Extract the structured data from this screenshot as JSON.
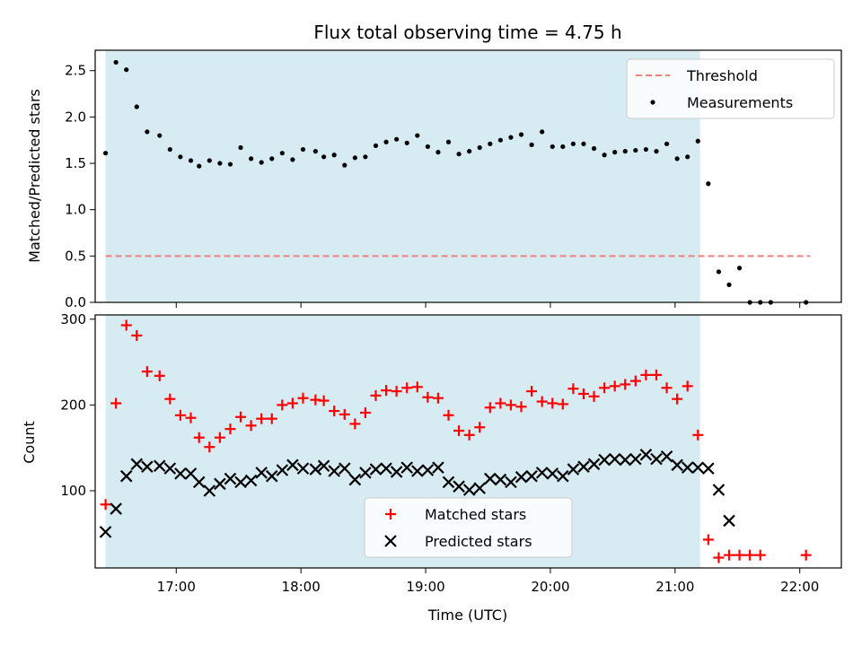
{
  "chart_data": [
    {
      "type": "scatter",
      "title": "Flux total observing time = 4.75 h",
      "xlabel": "",
      "ylabel": "Matched/Predicted stars",
      "xlim": [
        "16:21",
        "22:20"
      ],
      "ylim": [
        0.0,
        2.72
      ],
      "yticks": [
        0.0,
        0.5,
        1.0,
        1.5,
        2.0,
        2.5
      ],
      "yticklabels": [
        "0.0",
        "0.5",
        "1.0",
        "1.5",
        "2.0",
        "2.5"
      ],
      "xticks": [
        "17:00",
        "18:00",
        "19:00",
        "20:00",
        "21:00",
        "22:00"
      ],
      "grid": false,
      "legend_position": "top-right",
      "shaded_span": {
        "from": "16:26",
        "to": "21:12",
        "color": "#add8e6"
      },
      "threshold": {
        "name": "Threshold",
        "value": 0.5,
        "from": "16:26",
        "to": "22:05",
        "color": "#f08080"
      },
      "series": [
        {
          "name": "Measurements",
          "color": "#000000",
          "points": [
            [
              "16:26",
              1.61
            ],
            [
              "16:31",
              2.59
            ],
            [
              "16:36",
              2.51
            ],
            [
              "16:41",
              2.11
            ],
            [
              "16:46",
              1.84
            ],
            [
              "16:52",
              1.8
            ],
            [
              "16:57",
              1.65
            ],
            [
              "17:02",
              1.57
            ],
            [
              "17:07",
              1.53
            ],
            [
              "17:11",
              1.47
            ],
            [
              "17:16",
              1.53
            ],
            [
              "17:21",
              1.5
            ],
            [
              "17:26",
              1.49
            ],
            [
              "17:31",
              1.67
            ],
            [
              "17:36",
              1.55
            ],
            [
              "17:41",
              1.51
            ],
            [
              "17:46",
              1.55
            ],
            [
              "17:51",
              1.61
            ],
            [
              "17:56",
              1.54
            ],
            [
              "18:01",
              1.65
            ],
            [
              "18:07",
              1.63
            ],
            [
              "18:11",
              1.57
            ],
            [
              "18:16",
              1.59
            ],
            [
              "18:21",
              1.48
            ],
            [
              "18:26",
              1.56
            ],
            [
              "18:31",
              1.57
            ],
            [
              "18:36",
              1.69
            ],
            [
              "18:41",
              1.73
            ],
            [
              "18:46",
              1.76
            ],
            [
              "18:51",
              1.72
            ],
            [
              "18:56",
              1.8
            ],
            [
              "19:01",
              1.68
            ],
            [
              "19:06",
              1.62
            ],
            [
              "19:11",
              1.73
            ],
            [
              "19:16",
              1.6
            ],
            [
              "19:21",
              1.63
            ],
            [
              "19:26",
              1.67
            ],
            [
              "19:31",
              1.71
            ],
            [
              "19:36",
              1.75
            ],
            [
              "19:41",
              1.78
            ],
            [
              "19:46",
              1.81
            ],
            [
              "19:51",
              1.7
            ],
            [
              "19:56",
              1.84
            ],
            [
              "20:01",
              1.68
            ],
            [
              "20:06",
              1.68
            ],
            [
              "20:11",
              1.71
            ],
            [
              "20:16",
              1.71
            ],
            [
              "20:21",
              1.66
            ],
            [
              "20:26",
              1.59
            ],
            [
              "20:31",
              1.62
            ],
            [
              "20:36",
              1.63
            ],
            [
              "20:41",
              1.64
            ],
            [
              "20:46",
              1.65
            ],
            [
              "20:51",
              1.63
            ],
            [
              "20:56",
              1.71
            ],
            [
              "21:01",
              1.55
            ],
            [
              "21:06",
              1.57
            ],
            [
              "21:11",
              1.74
            ],
            [
              "21:16",
              1.28
            ],
            [
              "21:21",
              0.33
            ],
            [
              "21:26",
              0.19
            ],
            [
              "21:31",
              0.37
            ],
            [
              "21:36",
              0.0
            ],
            [
              "21:41",
              0.0
            ],
            [
              "21:46",
              0.0
            ],
            [
              "22:03",
              0.0
            ]
          ]
        }
      ]
    },
    {
      "type": "scatter",
      "title": "",
      "xlabel": "Time (UTC)",
      "ylabel": "Count",
      "xlim": [
        "16:21",
        "22:20"
      ],
      "ylim": [
        10,
        305
      ],
      "yticks": [
        100,
        200,
        300
      ],
      "yticklabels": [
        "100",
        "200",
        "300"
      ],
      "xticks": [
        "17:00",
        "18:00",
        "19:00",
        "20:00",
        "21:00",
        "22:00"
      ],
      "xticklabels": [
        "17:00",
        "18:00",
        "19:00",
        "20:00",
        "21:00",
        "22:00"
      ],
      "grid": false,
      "legend_position": "bottom-center",
      "shaded_span": {
        "from": "16:26",
        "to": "21:12",
        "color": "#add8e6"
      },
      "series": [
        {
          "name": "Matched stars",
          "marker": "+",
          "color": "#ff0000",
          "points": [
            [
              "16:26",
              84
            ],
            [
              "16:31",
              202
            ],
            [
              "16:36",
              293
            ],
            [
              "16:41",
              281
            ],
            [
              "16:46",
              239
            ],
            [
              "16:52",
              234
            ],
            [
              "16:57",
              207
            ],
            [
              "17:02",
              188
            ],
            [
              "17:07",
              185
            ],
            [
              "17:11",
              162
            ],
            [
              "17:16",
              151
            ],
            [
              "17:21",
              162
            ],
            [
              "17:26",
              172
            ],
            [
              "17:31",
              186
            ],
            [
              "17:36",
              176
            ],
            [
              "17:41",
              184
            ],
            [
              "17:46",
              184
            ],
            [
              "17:51",
              200
            ],
            [
              "17:56",
              202
            ],
            [
              "18:01",
              208
            ],
            [
              "18:07",
              206
            ],
            [
              "18:11",
              205
            ],
            [
              "18:16",
              193
            ],
            [
              "18:21",
              189
            ],
            [
              "18:26",
              178
            ],
            [
              "18:31",
              191
            ],
            [
              "18:36",
              211
            ],
            [
              "18:41",
              217
            ],
            [
              "18:46",
              216
            ],
            [
              "18:51",
              220
            ],
            [
              "18:56",
              221
            ],
            [
              "19:01",
              209
            ],
            [
              "19:06",
              208
            ],
            [
              "19:11",
              188
            ],
            [
              "19:16",
              170
            ],
            [
              "19:21",
              165
            ],
            [
              "19:26",
              174
            ],
            [
              "19:31",
              197
            ],
            [
              "19:36",
              202
            ],
            [
              "19:41",
              200
            ],
            [
              "19:46",
              198
            ],
            [
              "19:51",
              216
            ],
            [
              "19:56",
              204
            ],
            [
              "20:01",
              202
            ],
            [
              "20:06",
              201
            ],
            [
              "20:11",
              219
            ],
            [
              "20:16",
              213
            ],
            [
              "20:21",
              210
            ],
            [
              "20:26",
              220
            ],
            [
              "20:31",
              222
            ],
            [
              "20:36",
              224
            ],
            [
              "20:41",
              228
            ],
            [
              "20:46",
              235
            ],
            [
              "20:51",
              235
            ],
            [
              "20:56",
              220
            ],
            [
              "21:01",
              207
            ],
            [
              "21:06",
              222
            ],
            [
              "21:11",
              165
            ],
            [
              "21:16",
              43
            ],
            [
              "21:21",
              22
            ],
            [
              "21:26",
              25
            ],
            [
              "21:31",
              25
            ],
            [
              "21:36",
              25
            ],
            [
              "21:41",
              25
            ],
            [
              "22:03",
              25
            ]
          ]
        },
        {
          "name": "Predicted stars",
          "marker": "x",
          "color": "#000000",
          "points": [
            [
              "16:26",
              52
            ],
            [
              "16:31",
              79
            ],
            [
              "16:36",
              117
            ],
            [
              "16:41",
              131
            ],
            [
              "16:46",
              128
            ],
            [
              "16:52",
              129
            ],
            [
              "16:57",
              126
            ],
            [
              "17:02",
              120
            ],
            [
              "17:07",
              120
            ],
            [
              "17:11",
              110
            ],
            [
              "17:16",
              100
            ],
            [
              "17:21",
              108
            ],
            [
              "17:26",
              114
            ],
            [
              "17:31",
              110
            ],
            [
              "17:36",
              112
            ],
            [
              "17:41",
              121
            ],
            [
              "17:46",
              117
            ],
            [
              "17:51",
              124
            ],
            [
              "17:56",
              130
            ],
            [
              "18:01",
              126
            ],
            [
              "18:07",
              125
            ],
            [
              "18:11",
              129
            ],
            [
              "18:16",
              123
            ],
            [
              "18:21",
              126
            ],
            [
              "18:26",
              113
            ],
            [
              "18:31",
              121
            ],
            [
              "18:36",
              125
            ],
            [
              "18:41",
              126
            ],
            [
              "18:46",
              122
            ],
            [
              "18:51",
              127
            ],
            [
              "18:56",
              123
            ],
            [
              "19:01",
              124
            ],
            [
              "19:06",
              127
            ],
            [
              "19:11",
              110
            ],
            [
              "19:16",
              105
            ],
            [
              "19:21",
              101
            ],
            [
              "19:26",
              103
            ],
            [
              "19:31",
              114
            ],
            [
              "19:36",
              113
            ],
            [
              "19:41",
              110
            ],
            [
              "19:46",
              116
            ],
            [
              "19:51",
              117
            ],
            [
              "19:56",
              121
            ],
            [
              "20:01",
              120
            ],
            [
              "20:06",
              117
            ],
            [
              "20:11",
              125
            ],
            [
              "20:16",
              128
            ],
            [
              "20:21",
              131
            ],
            [
              "20:26",
              136
            ],
            [
              "20:31",
              137
            ],
            [
              "20:36",
              136
            ],
            [
              "20:41",
              137
            ],
            [
              "20:46",
              142
            ],
            [
              "20:51",
              137
            ],
            [
              "20:56",
              140
            ],
            [
              "21:01",
              130
            ],
            [
              "21:06",
              127
            ],
            [
              "21:11",
              127
            ],
            [
              "21:16",
              126
            ],
            [
              "21:21",
              101
            ],
            [
              "21:26",
              65
            ]
          ]
        }
      ]
    }
  ]
}
